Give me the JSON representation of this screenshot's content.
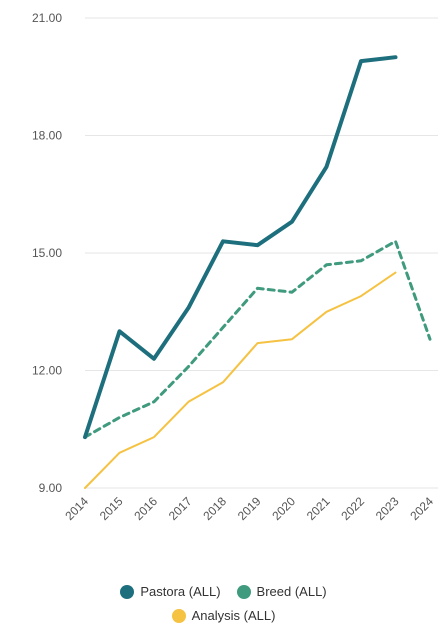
{
  "chart_data": {
    "type": "line",
    "title": "",
    "xlabel": "",
    "ylabel": "",
    "categories": [
      "2014",
      "2015",
      "2016",
      "2017",
      "2018",
      "2019",
      "2020",
      "2021",
      "2022",
      "2023",
      "2024"
    ],
    "y_ticks": [
      "9.00",
      "12.00",
      "15.00",
      "18.00",
      "21.00"
    ],
    "ylim": [
      9,
      21
    ],
    "grid": true,
    "legend_position": "bottom",
    "series": [
      {
        "name": "Pastora (ALL)",
        "color": "#1d6f7d",
        "style": "solid",
        "x": [
          "2014",
          "2015",
          "2016",
          "2017",
          "2018",
          "2019",
          "2020",
          "2021",
          "2022",
          "2023"
        ],
        "values": [
          10.3,
          13.0,
          12.3,
          13.6,
          15.3,
          15.2,
          15.8,
          17.2,
          19.9,
          20.0
        ]
      },
      {
        "name": "Breed (ALL)",
        "color": "#3f9a7e",
        "style": "dashed",
        "x": [
          "2014",
          "2015",
          "2016",
          "2017",
          "2018",
          "2019",
          "2020",
          "2021",
          "2022",
          "2023",
          "2024"
        ],
        "values": [
          10.3,
          10.8,
          11.2,
          12.1,
          13.1,
          14.1,
          14.0,
          14.7,
          14.8,
          15.3,
          12.8
        ]
      },
      {
        "name": "Analysis (ALL)",
        "color": "#f5c242",
        "style": "solid-thin",
        "x": [
          "2014",
          "2015",
          "2016",
          "2017",
          "2018",
          "2019",
          "2020",
          "2021",
          "2022",
          "2023"
        ],
        "values": [
          9.0,
          9.9,
          10.3,
          11.2,
          11.7,
          12.7,
          12.8,
          13.5,
          13.9,
          14.5
        ]
      }
    ]
  }
}
